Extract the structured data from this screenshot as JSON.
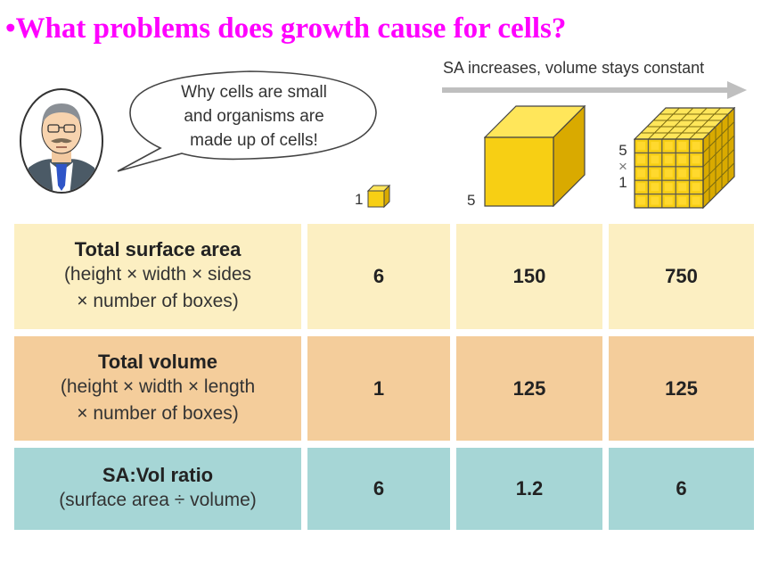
{
  "title": "•What problems does growth cause for cells?",
  "speech_bubble": {
    "lines": [
      "Why cells are small",
      "and organisms are",
      "made up of cells!"
    ]
  },
  "arrow_caption": "SA increases, volume stays constant",
  "cubes": {
    "small_side": "1",
    "large_side": "5",
    "many_label": [
      "5",
      "×",
      "1"
    ]
  },
  "table": {
    "rows": [
      {
        "heading": "Total surface area",
        "sub": [
          "(height × width × sides",
          "× number of boxes)"
        ],
        "values": [
          "6",
          "150",
          "750"
        ]
      },
      {
        "heading": "Total volume",
        "sub": [
          "(height × width × length",
          "× number of boxes)"
        ],
        "values": [
          "1",
          "125",
          "125"
        ]
      },
      {
        "heading": "SA:Vol ratio",
        "sub": [
          "(surface area ÷ volume)"
        ],
        "values": [
          "6",
          "1.2",
          "6"
        ]
      }
    ]
  },
  "colors": {
    "title": "#ff00ff",
    "row1": "#fcefc2",
    "row2": "#f4cd9b",
    "row3": "#a6d6d6",
    "cube_front": "#f7cf14",
    "cube_top": "#ffe65a",
    "cube_side": "#d9aa00"
  },
  "icons": [
    "scientist-portrait",
    "speech-bubble",
    "right-arrow-icon",
    "cube-icon"
  ]
}
